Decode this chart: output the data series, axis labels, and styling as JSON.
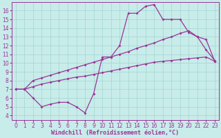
{
  "background_color": "#c8ece9",
  "grid_color": "#a8d8d4",
  "line_color": "#993399",
  "marker": "D",
  "markersize": 2,
  "linewidth": 0.9,
  "xlabel": "Windchill (Refroidissement éolien,°C)",
  "xlabel_fontsize": 6,
  "tick_fontsize": 5.5,
  "xlim": [
    -0.5,
    23.5
  ],
  "ylim": [
    3.5,
    17.0
  ],
  "xticks": [
    0,
    1,
    2,
    3,
    4,
    5,
    6,
    7,
    8,
    9,
    10,
    11,
    12,
    13,
    14,
    15,
    16,
    17,
    18,
    19,
    20,
    21,
    22,
    23
  ],
  "yticks": [
    4,
    5,
    6,
    7,
    8,
    9,
    10,
    11,
    12,
    13,
    14,
    15,
    16
  ],
  "curve1_x": [
    0,
    1,
    2,
    3,
    4,
    5,
    6,
    7,
    8,
    9,
    10,
    11,
    12,
    13,
    14,
    15,
    16,
    17,
    18,
    19,
    20,
    21,
    22,
    23
  ],
  "curve1_y": [
    7.0,
    7.0,
    7.3,
    7.6,
    7.8,
    8.0,
    8.2,
    8.4,
    8.5,
    8.7,
    8.9,
    9.1,
    9.3,
    9.5,
    9.7,
    9.9,
    10.1,
    10.2,
    10.3,
    10.4,
    10.5,
    10.6,
    10.7,
    10.2
  ],
  "curve2_x": [
    0,
    1,
    2,
    3,
    4,
    5,
    6,
    7,
    8,
    9,
    10,
    11,
    12,
    13,
    14,
    15,
    16,
    17,
    18,
    19,
    20,
    21,
    22,
    23
  ],
  "curve2_y": [
    7.0,
    7.0,
    8.0,
    8.3,
    8.6,
    8.9,
    9.2,
    9.5,
    9.8,
    10.1,
    10.4,
    10.7,
    11.0,
    11.3,
    11.7,
    12.0,
    12.3,
    12.7,
    13.0,
    13.4,
    13.7,
    13.0,
    12.7,
    10.2
  ],
  "curve3_x": [
    0,
    1,
    2,
    3,
    4,
    5,
    6,
    7,
    8,
    9,
    10,
    11,
    12,
    13,
    14,
    15,
    16,
    17,
    18,
    19,
    20,
    21,
    22,
    23
  ],
  "curve3_y": [
    7.0,
    7.0,
    6.0,
    5.0,
    5.3,
    5.5,
    5.5,
    5.0,
    4.3,
    6.5,
    10.7,
    10.7,
    12.0,
    15.7,
    15.7,
    16.5,
    16.7,
    15.0,
    15.0,
    15.0,
    13.5,
    13.0,
    11.5,
    10.3
  ]
}
